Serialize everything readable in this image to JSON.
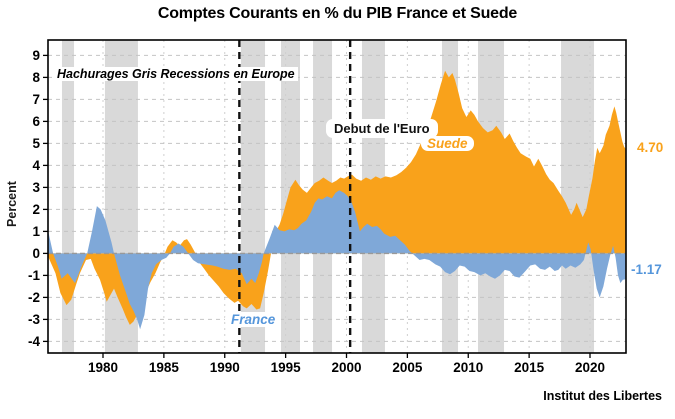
{
  "page": {
    "title": "Comptes Courants en % du PIB France et Suede",
    "source": "Institut des Libertes"
  },
  "chart_data": {
    "type": "area",
    "title": "Comptes Courants en % du PIB France et Suede",
    "xlabel": "",
    "ylabel": "Percent",
    "xlim": [
      1975.5,
      2023.0
    ],
    "ylim": [
      -4.6,
      9.7
    ],
    "grid": "dashed",
    "x_ticks": [
      1980,
      1985,
      1990,
      1995,
      2000,
      2005,
      2010,
      2015,
      2020
    ],
    "y_ticks": [
      -4,
      -3,
      -2,
      -1,
      0,
      1,
      2,
      3,
      4,
      5,
      6,
      7,
      8,
      9
    ],
    "annotations": {
      "recession_note": "Hachurages Gris Recessions en Europe",
      "euro_note": "Debut de l'Euro"
    },
    "colors": {
      "sweden": "#f9a21b",
      "france_area": "#7fa8d8",
      "france_text": "#5596db",
      "recession_band": "#d9d9d9",
      "gridline": "#c4c4c4",
      "zero_line": "#999999",
      "frame": "#000000"
    },
    "recession_bands": [
      [
        1976.63,
        1977.62
      ],
      [
        1980.16,
        1982.87
      ],
      [
        1991.33,
        1993.31
      ],
      [
        1994.62,
        1996.18
      ],
      [
        1997.25,
        1998.81
      ],
      [
        2001.27,
        2003.16
      ],
      [
        2007.84,
        2009.16
      ],
      [
        2010.8,
        2012.94
      ],
      [
        2017.62,
        2020.33
      ]
    ],
    "event_lines": [
      {
        "year": 1991.2,
        "label": ""
      },
      {
        "year": 2000.3,
        "label": "Debut de l'Euro"
      }
    ],
    "series": [
      {
        "name": "Suede",
        "label": "Suede",
        "end_label": "4.70",
        "end_value": 4.7,
        "color": "#f9a21b",
        "points": [
          [
            1975.5,
            -0.15
          ],
          [
            1976.1,
            -0.9
          ],
          [
            1976.5,
            -1.8
          ],
          [
            1977.0,
            -2.35
          ],
          [
            1977.4,
            -2.1
          ],
          [
            1977.8,
            -1.4
          ],
          [
            1978.1,
            -0.9
          ],
          [
            1978.6,
            -0.3
          ],
          [
            1979.0,
            -0.25
          ],
          [
            1979.3,
            -0.7
          ],
          [
            1979.75,
            -1.2
          ],
          [
            1980.1,
            -1.8
          ],
          [
            1980.3,
            -2.2
          ],
          [
            1980.6,
            -1.9
          ],
          [
            1980.9,
            -1.6
          ],
          [
            1981.2,
            -2.0
          ],
          [
            1981.6,
            -2.5
          ],
          [
            1981.9,
            -2.9
          ],
          [
            1982.2,
            -3.25
          ],
          [
            1982.5,
            -3.1
          ],
          [
            1982.9,
            -2.7
          ],
          [
            1983.2,
            -2.3
          ],
          [
            1983.5,
            -1.8
          ],
          [
            1983.9,
            -1.3
          ],
          [
            1984.3,
            -0.9
          ],
          [
            1984.7,
            -0.4
          ],
          [
            1985.0,
            -0.1
          ],
          [
            1985.3,
            0.3
          ],
          [
            1985.7,
            0.6
          ],
          [
            1986.0,
            0.5
          ],
          [
            1986.3,
            0.35
          ],
          [
            1986.65,
            0.6
          ],
          [
            1986.9,
            0.65
          ],
          [
            1987.2,
            0.4
          ],
          [
            1987.6,
            0.0
          ],
          [
            1987.9,
            -0.4
          ],
          [
            1988.3,
            -0.7
          ],
          [
            1988.7,
            -1.0
          ],
          [
            1989.1,
            -1.25
          ],
          [
            1989.5,
            -1.5
          ],
          [
            1989.9,
            -1.8
          ],
          [
            1990.35,
            -2.05
          ],
          [
            1990.8,
            -2.25
          ],
          [
            1991.1,
            -2.15
          ],
          [
            1991.5,
            -2.4
          ],
          [
            1991.8,
            -2.5
          ],
          [
            1992.2,
            -2.3
          ],
          [
            1992.6,
            -2.55
          ],
          [
            1992.9,
            -2.5
          ],
          [
            1993.2,
            -1.8
          ],
          [
            1993.55,
            -0.8
          ],
          [
            1993.8,
            0.0
          ],
          [
            1994.1,
            0.9
          ],
          [
            1994.5,
            1.3
          ],
          [
            1994.8,
            1.8
          ],
          [
            1995.1,
            2.4
          ],
          [
            1995.4,
            3.0
          ],
          [
            1995.8,
            3.35
          ],
          [
            1996.1,
            3.1
          ],
          [
            1996.4,
            2.9
          ],
          [
            1996.75,
            2.75
          ],
          [
            1997.1,
            3.0
          ],
          [
            1997.4,
            3.2
          ],
          [
            1997.75,
            3.3
          ],
          [
            1998.1,
            3.45
          ],
          [
            1998.5,
            3.3
          ],
          [
            1998.8,
            3.2
          ],
          [
            1999.15,
            3.3
          ],
          [
            1999.5,
            3.45
          ],
          [
            1999.8,
            3.4
          ],
          [
            2000.1,
            3.5
          ],
          [
            2000.45,
            3.58
          ],
          [
            2000.8,
            3.4
          ],
          [
            2001.2,
            3.3
          ],
          [
            2001.6,
            3.45
          ],
          [
            2002.0,
            3.35
          ],
          [
            2002.4,
            3.5
          ],
          [
            2002.8,
            3.4
          ],
          [
            2003.2,
            3.5
          ],
          [
            2003.65,
            3.45
          ],
          [
            2004.1,
            3.55
          ],
          [
            2004.5,
            3.7
          ],
          [
            2004.9,
            3.9
          ],
          [
            2005.3,
            4.15
          ],
          [
            2005.7,
            4.5
          ],
          [
            2006.1,
            5.0
          ],
          [
            2006.5,
            5.5
          ],
          [
            2006.9,
            6.1
          ],
          [
            2007.35,
            6.9
          ],
          [
            2007.75,
            7.7
          ],
          [
            2008.1,
            8.3
          ],
          [
            2008.4,
            8.0
          ],
          [
            2008.7,
            8.2
          ],
          [
            2008.9,
            7.9
          ],
          [
            2009.2,
            7.3
          ],
          [
            2009.5,
            6.6
          ],
          [
            2009.85,
            6.2
          ],
          [
            2010.2,
            6.5
          ],
          [
            2010.5,
            6.3
          ],
          [
            2010.8,
            6.0
          ],
          [
            2011.2,
            5.7
          ],
          [
            2011.6,
            5.5
          ],
          [
            2012.0,
            5.6
          ],
          [
            2012.3,
            5.8
          ],
          [
            2012.7,
            5.5
          ],
          [
            2013.0,
            5.2
          ],
          [
            2013.4,
            5.45
          ],
          [
            2013.7,
            5.1
          ],
          [
            2014.0,
            4.8
          ],
          [
            2014.3,
            4.55
          ],
          [
            2014.75,
            4.4
          ],
          [
            2015.1,
            4.3
          ],
          [
            2015.4,
            3.95
          ],
          [
            2015.75,
            4.3
          ],
          [
            2016.05,
            4.0
          ],
          [
            2016.4,
            3.6
          ],
          [
            2016.7,
            3.35
          ],
          [
            2017.0,
            3.2
          ],
          [
            2017.4,
            2.85
          ],
          [
            2017.7,
            2.6
          ],
          [
            2018.0,
            2.3
          ],
          [
            2018.45,
            1.75
          ],
          [
            2018.7,
            2.0
          ],
          [
            2018.9,
            2.3
          ],
          [
            2019.2,
            1.9
          ],
          [
            2019.4,
            1.65
          ],
          [
            2019.7,
            2.0
          ],
          [
            2019.9,
            2.6
          ],
          [
            2020.2,
            3.4
          ],
          [
            2020.4,
            4.2
          ],
          [
            2020.6,
            4.8
          ],
          [
            2020.8,
            4.55
          ],
          [
            2021.1,
            4.9
          ],
          [
            2021.3,
            5.4
          ],
          [
            2021.6,
            5.8
          ],
          [
            2021.8,
            6.3
          ],
          [
            2022.0,
            6.68
          ],
          [
            2022.15,
            6.4
          ],
          [
            2022.3,
            6.0
          ],
          [
            2022.5,
            5.5
          ],
          [
            2022.65,
            5.1
          ],
          [
            2022.8,
            4.85
          ],
          [
            2023.0,
            4.7
          ]
        ]
      },
      {
        "name": "France",
        "label": "France",
        "end_label": "-1.17",
        "end_value": -1.17,
        "color": "#7fa8d8",
        "points": [
          [
            1975.5,
            1.0
          ],
          [
            1975.9,
            0.0
          ],
          [
            1976.3,
            -0.6
          ],
          [
            1976.6,
            -1.15
          ],
          [
            1977.1,
            -0.9
          ],
          [
            1977.7,
            -1.35
          ],
          [
            1978.3,
            -0.5
          ],
          [
            1978.7,
            0.0
          ],
          [
            1979.1,
            1.0
          ],
          [
            1979.5,
            2.15
          ],
          [
            1979.8,
            2.0
          ],
          [
            1980.2,
            1.5
          ],
          [
            1980.7,
            0.5
          ],
          [
            1980.9,
            0.0
          ],
          [
            1981.4,
            -1.0
          ],
          [
            1981.9,
            -1.8
          ],
          [
            1982.2,
            -2.3
          ],
          [
            1982.5,
            -2.6
          ],
          [
            1982.8,
            -3.0
          ],
          [
            1983.05,
            -3.45
          ],
          [
            1983.4,
            -2.8
          ],
          [
            1983.7,
            -1.6
          ],
          [
            1984.0,
            -0.9
          ],
          [
            1984.35,
            -0.5
          ],
          [
            1984.8,
            -0.3
          ],
          [
            1985.2,
            -0.2
          ],
          [
            1985.5,
            0.0
          ],
          [
            1985.8,
            0.3
          ],
          [
            1986.2,
            0.45
          ],
          [
            1986.6,
            0.3
          ],
          [
            1987.0,
            0.0
          ],
          [
            1987.4,
            -0.3
          ],
          [
            1987.8,
            -0.45
          ],
          [
            1988.4,
            -0.5
          ],
          [
            1989.0,
            -0.55
          ],
          [
            1989.4,
            -0.6
          ],
          [
            1989.9,
            -0.7
          ],
          [
            1990.4,
            -0.75
          ],
          [
            1990.9,
            -0.7
          ],
          [
            1991.4,
            -0.9
          ],
          [
            1991.8,
            -1.4
          ],
          [
            1992.2,
            -1.15
          ],
          [
            1992.5,
            -1.35
          ],
          [
            1992.8,
            -0.9
          ],
          [
            1993.05,
            -0.4
          ],
          [
            1993.2,
            0.0
          ],
          [
            1993.7,
            0.7
          ],
          [
            1994.1,
            1.3
          ],
          [
            1994.5,
            1.05
          ],
          [
            1994.9,
            1.0
          ],
          [
            1995.3,
            1.1
          ],
          [
            1995.7,
            1.05
          ],
          [
            1996.0,
            1.15
          ],
          [
            1996.3,
            1.35
          ],
          [
            1996.7,
            1.5
          ],
          [
            1997.1,
            1.9
          ],
          [
            1997.4,
            2.3
          ],
          [
            1997.7,
            2.5
          ],
          [
            1998.0,
            2.45
          ],
          [
            1998.4,
            2.6
          ],
          [
            1998.8,
            2.5
          ],
          [
            1999.1,
            2.75
          ],
          [
            1999.4,
            2.87
          ],
          [
            1999.8,
            2.75
          ],
          [
            2000.1,
            2.6
          ],
          [
            2000.4,
            2.35
          ],
          [
            2000.7,
            1.9
          ],
          [
            2001.1,
            1.0
          ],
          [
            2001.4,
            1.2
          ],
          [
            2001.7,
            1.35
          ],
          [
            2002.1,
            1.2
          ],
          [
            2002.5,
            1.25
          ],
          [
            2002.8,
            1.1
          ],
          [
            2003.1,
            0.9
          ],
          [
            2003.6,
            0.75
          ],
          [
            2004.0,
            0.8
          ],
          [
            2004.4,
            0.6
          ],
          [
            2004.8,
            0.4
          ],
          [
            2005.2,
            0.1
          ],
          [
            2005.6,
            -0.1
          ],
          [
            2006.0,
            -0.3
          ],
          [
            2006.4,
            -0.25
          ],
          [
            2006.8,
            -0.3
          ],
          [
            2007.3,
            -0.5
          ],
          [
            2007.7,
            -0.6
          ],
          [
            2008.1,
            -0.85
          ],
          [
            2008.5,
            -0.95
          ],
          [
            2008.9,
            -0.8
          ],
          [
            2009.3,
            -0.55
          ],
          [
            2009.7,
            -0.6
          ],
          [
            2010.1,
            -0.8
          ],
          [
            2010.5,
            -0.85
          ],
          [
            2011.0,
            -1.0
          ],
          [
            2011.4,
            -0.9
          ],
          [
            2011.8,
            -1.05
          ],
          [
            2012.2,
            -1.15
          ],
          [
            2012.6,
            -1.0
          ],
          [
            2013.0,
            -0.75
          ],
          [
            2013.4,
            -0.8
          ],
          [
            2013.8,
            -1.05
          ],
          [
            2014.2,
            -1.1
          ],
          [
            2014.7,
            -0.8
          ],
          [
            2015.1,
            -0.55
          ],
          [
            2015.5,
            -0.5
          ],
          [
            2015.9,
            -0.7
          ],
          [
            2016.3,
            -0.75
          ],
          [
            2016.7,
            -0.6
          ],
          [
            2017.1,
            -0.8
          ],
          [
            2017.4,
            -0.75
          ],
          [
            2017.7,
            -0.55
          ],
          [
            2018.0,
            -0.7
          ],
          [
            2018.4,
            -0.55
          ],
          [
            2018.8,
            -0.65
          ],
          [
            2019.2,
            -0.5
          ],
          [
            2019.5,
            -0.3
          ],
          [
            2019.85,
            0.5
          ],
          [
            2020.05,
            0.2
          ],
          [
            2020.3,
            -0.8
          ],
          [
            2020.55,
            -1.6
          ],
          [
            2020.8,
            -2.0
          ],
          [
            2021.1,
            -1.5
          ],
          [
            2021.4,
            -0.7
          ],
          [
            2021.65,
            -0.1
          ],
          [
            2021.9,
            0.35
          ],
          [
            2022.1,
            -0.2
          ],
          [
            2022.3,
            -1.0
          ],
          [
            2022.5,
            -1.35
          ],
          [
            2022.7,
            -1.2
          ],
          [
            2023.0,
            -1.17
          ]
        ]
      }
    ]
  }
}
